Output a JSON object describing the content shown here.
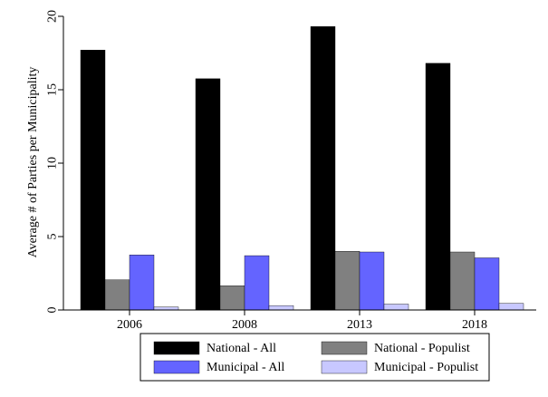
{
  "chart_data": {
    "type": "bar",
    "title": "",
    "xlabel": "",
    "ylabel": "Average # of Parties per Municipality",
    "categories": [
      "2006",
      "2008",
      "2013",
      "2018"
    ],
    "ylim": [
      0,
      20
    ],
    "yticks": [
      0,
      5,
      10,
      15,
      20
    ],
    "ytick_labels": [
      "0",
      "5",
      "10",
      "15",
      "20"
    ],
    "grid": false,
    "legend_position": "bottom",
    "series": [
      {
        "name": "National - All",
        "color": "#000000",
        "values": [
          17.7,
          15.75,
          19.3,
          16.8
        ]
      },
      {
        "name": "National - Populist",
        "color": "#808080",
        "values": [
          2.05,
          1.65,
          4.0,
          3.95
        ]
      },
      {
        "name": "Municipal - All",
        "color": "#6464ff",
        "values": [
          3.75,
          3.7,
          3.95,
          3.55
        ]
      },
      {
        "name": "Municipal - Populist",
        "color": "#c8c8ff",
        "values": [
          0.2,
          0.3,
          0.4,
          0.45
        ]
      }
    ]
  }
}
